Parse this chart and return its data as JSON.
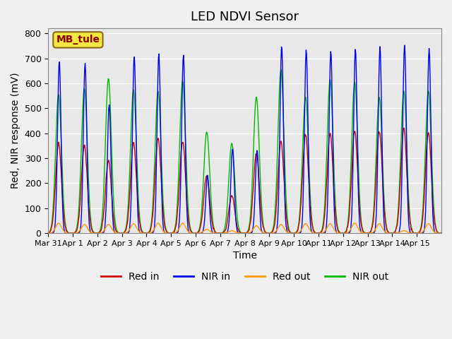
{
  "title": "LED NDVI Sensor",
  "xlabel": "Time",
  "ylabel": "Red, NIR response (mV)",
  "legend_label": "MB_tule",
  "ylim": [
    0,
    820
  ],
  "yticks": [
    0,
    100,
    200,
    300,
    400,
    500,
    600,
    700,
    800
  ],
  "xtick_labels": [
    "Mar 31",
    "Apr 1",
    "Apr 2",
    "Apr 3",
    "Apr 4",
    "Apr 5",
    "Apr 6",
    "Apr 7",
    "Apr 8",
    "Apr 9",
    "Apr 10",
    "Apr 11",
    "Apr 12",
    "Apr 13",
    "Apr 14",
    "Apr 15"
  ],
  "series_colors": {
    "Red in": "#cc0000",
    "NIR in": "#0000ee",
    "Red out": "#ff9900",
    "NIR out": "#00bb00"
  },
  "fig_facecolor": "#f0f0f0",
  "axes_facecolor": "#e8e8e8",
  "grid_color": "#ffffff",
  "title_fontsize": 13,
  "axis_fontsize": 10,
  "legend_fontsize": 10,
  "n_days": 16,
  "red_in_h": [
    360,
    350,
    290,
    360,
    380,
    370,
    230,
    150,
    320,
    370,
    395,
    400,
    410,
    410,
    420,
    405
  ],
  "nir_in_h": [
    690,
    680,
    515,
    710,
    720,
    715,
    230,
    340,
    335,
    750,
    735,
    730,
    740,
    745,
    755,
    740
  ],
  "red_out_h": [
    40,
    35,
    35,
    38,
    40,
    40,
    15,
    10,
    30,
    35,
    38,
    38,
    40,
    38,
    10,
    38
  ],
  "nir_out_h": [
    555,
    580,
    620,
    575,
    570,
    610,
    405,
    360,
    545,
    655,
    545,
    615,
    605,
    545,
    570,
    570
  ]
}
